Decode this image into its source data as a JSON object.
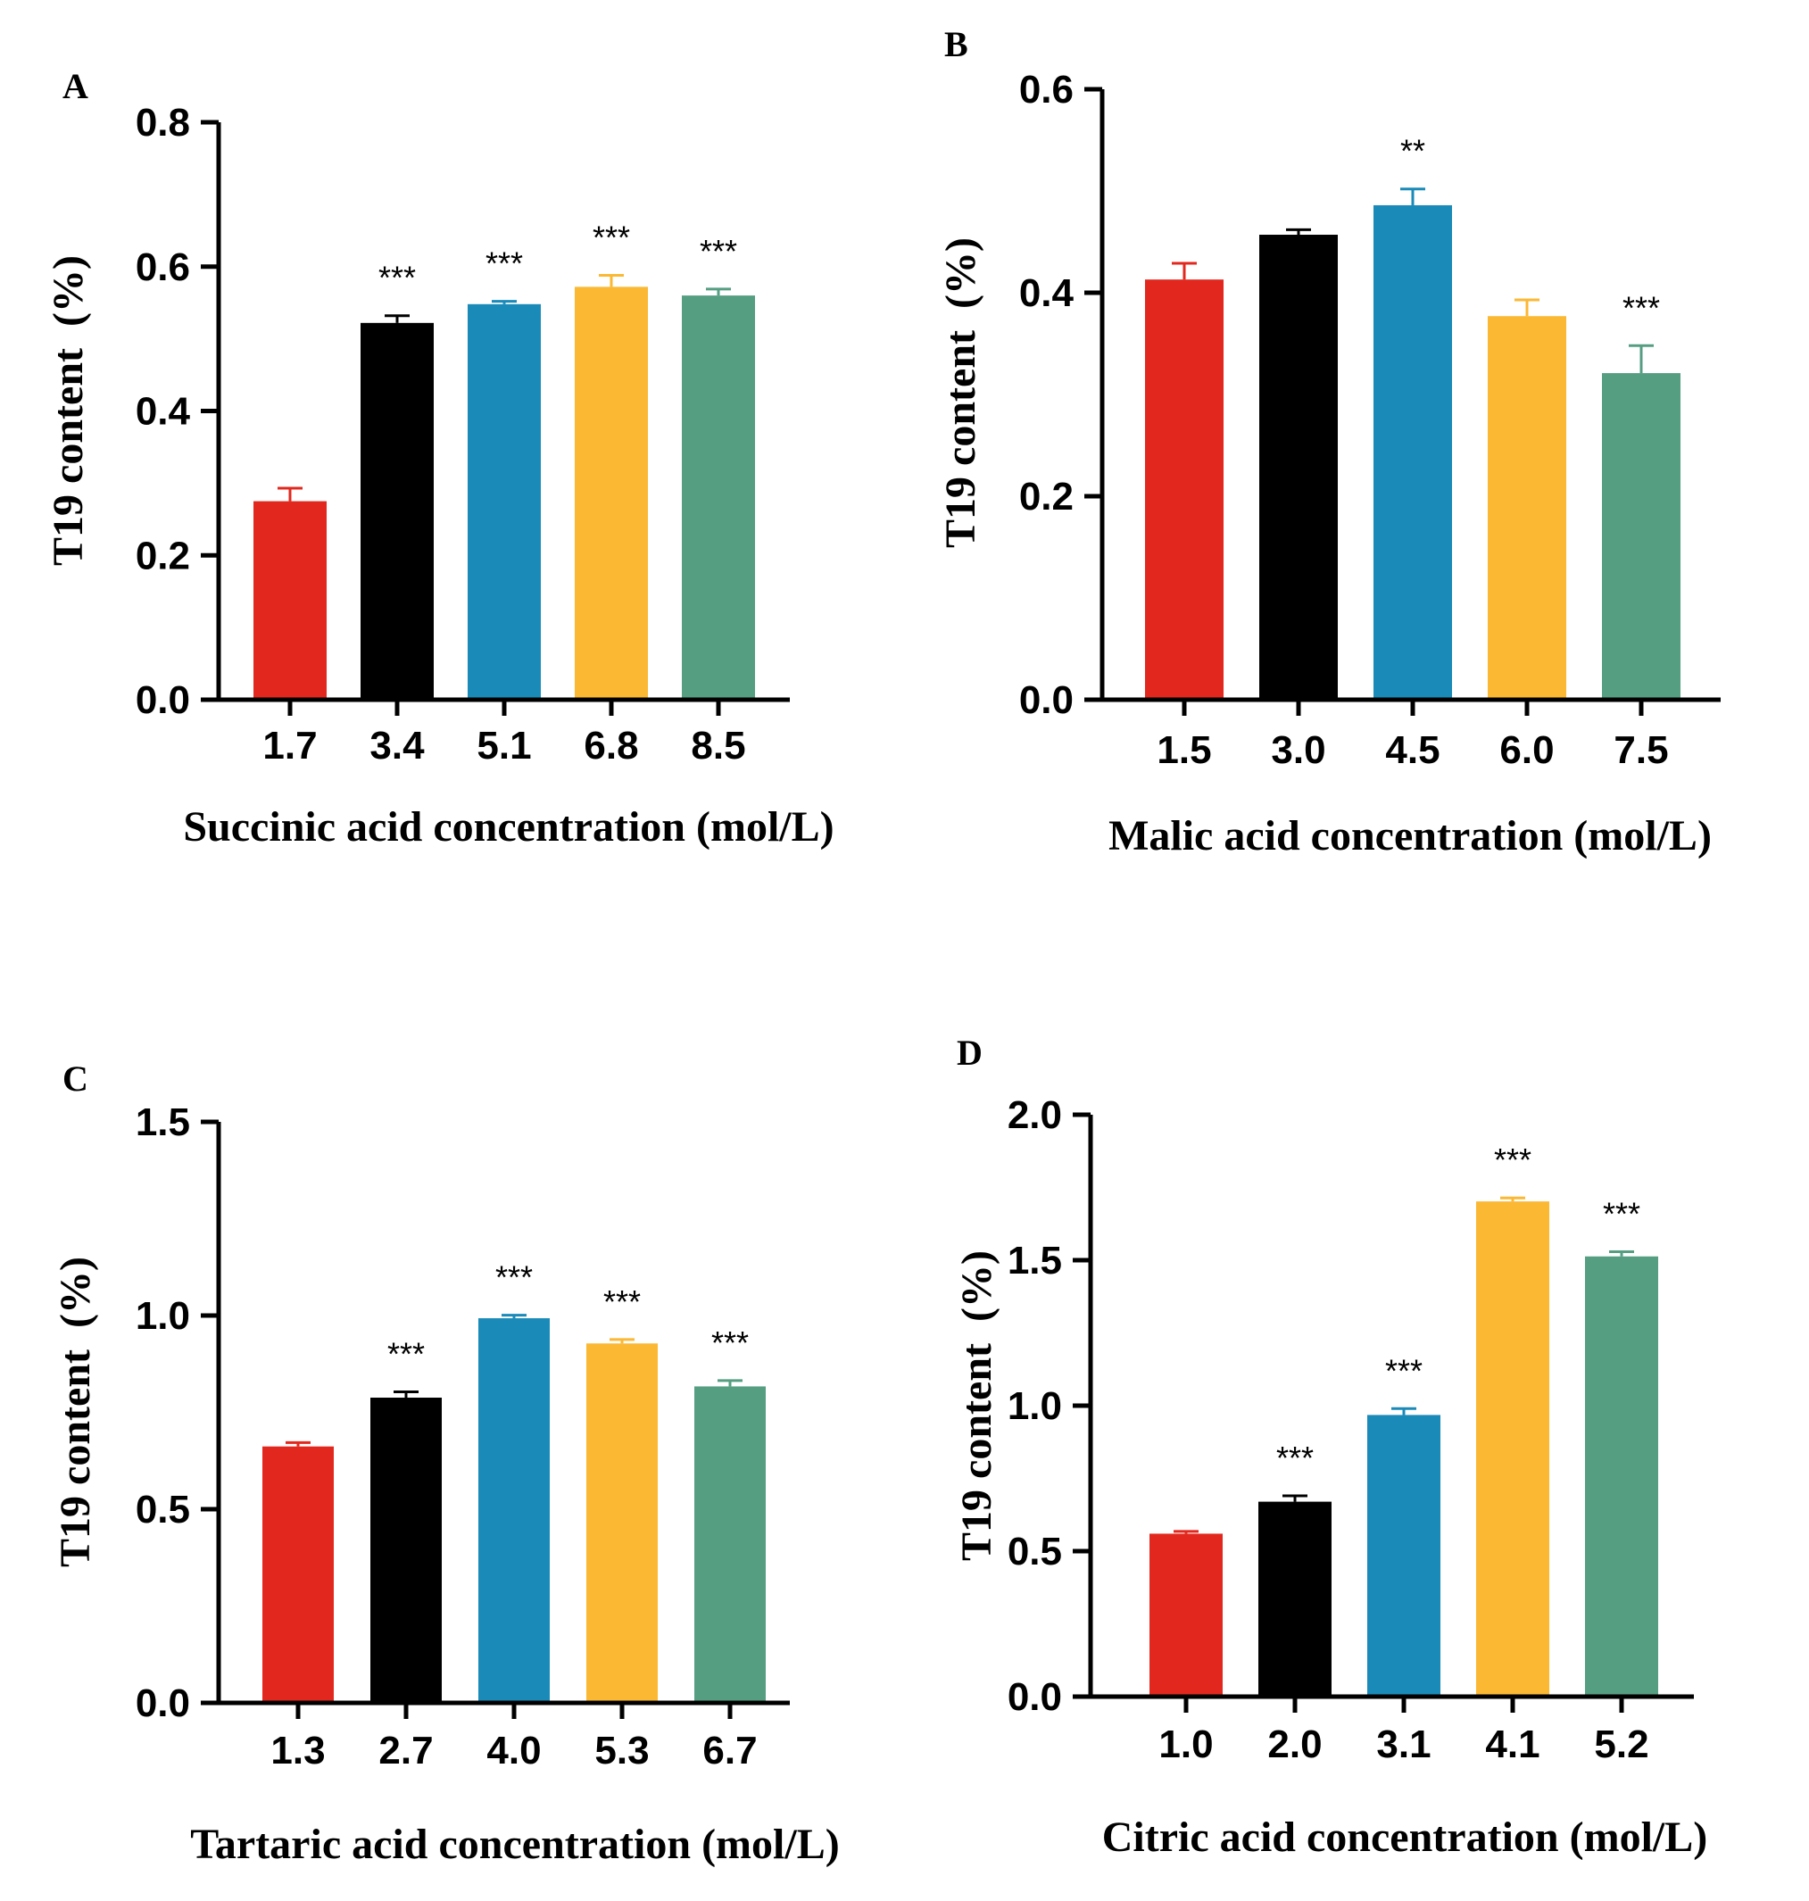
{
  "chart_data": [
    {
      "panel": "A",
      "type": "bar",
      "title": "",
      "xlabel": "Succinic acid concentration (mol/L)",
      "ylabel": "T19 content  (%)",
      "categories": [
        "1.7",
        "3.4",
        "5.1",
        "6.8",
        "8.5"
      ],
      "values": [
        0.275,
        0.522,
        0.548,
        0.572,
        0.56
      ],
      "errors": [
        0.018,
        0.01,
        0.004,
        0.016,
        0.009
      ],
      "significance": [
        "",
        "***",
        "***",
        "***",
        "***"
      ],
      "ylim": [
        0,
        0.8
      ],
      "yticks": [
        "0.0",
        "0.2",
        "0.4",
        "0.6",
        "0.8"
      ],
      "colors": [
        "#E2281E",
        "#000000",
        "#1A8AB8",
        "#FBB833",
        "#559E82"
      ]
    },
    {
      "panel": "B",
      "type": "bar",
      "title": "",
      "xlabel": "Malic acid concentration (mol/L)",
      "ylabel": "T19 content  (%)",
      "categories": [
        "1.5",
        "3.0",
        "4.5",
        "6.0",
        "7.5"
      ],
      "values": [
        0.413,
        0.457,
        0.486,
        0.377,
        0.321
      ],
      "errors": [
        0.016,
        0.005,
        0.016,
        0.016,
        0.027
      ],
      "significance": [
        "",
        "",
        "**",
        "",
        "***"
      ],
      "ylim": [
        0,
        0.6
      ],
      "yticks": [
        "0.0",
        "0.2",
        "0.4",
        "0.6"
      ],
      "colors": [
        "#E2281E",
        "#000000",
        "#1A8AB8",
        "#FBB833",
        "#559E82"
      ]
    },
    {
      "panel": "C",
      "type": "bar",
      "title": "",
      "xlabel": "Tartaric acid concentration (mol/L)",
      "ylabel": "T19 content  (%)",
      "categories": [
        "1.3",
        "2.7",
        "4.0",
        "5.3",
        "6.7"
      ],
      "values": [
        0.662,
        0.788,
        0.993,
        0.928,
        0.817
      ],
      "errors": [
        0.01,
        0.015,
        0.008,
        0.01,
        0.015
      ],
      "significance": [
        "",
        "***",
        "***",
        "***",
        "***"
      ],
      "ylim": [
        0,
        1.5
      ],
      "yticks": [
        "0.0",
        "0.5",
        "1.0",
        "1.5"
      ],
      "colors": [
        "#E2281E",
        "#000000",
        "#1A8AB8",
        "#FBB833",
        "#559E82"
      ]
    },
    {
      "panel": "D",
      "type": "bar",
      "title": "",
      "xlabel": "Citric acid concentration (mol/L)",
      "ylabel": "T19 content  (%)",
      "categories": [
        "1.0",
        "2.0",
        "3.1",
        "4.1",
        "5.2"
      ],
      "values": [
        0.56,
        0.67,
        0.968,
        1.702,
        1.513
      ],
      "errors": [
        0.008,
        0.02,
        0.022,
        0.012,
        0.016
      ],
      "significance": [
        "",
        "***",
        "***",
        "***",
        "***"
      ],
      "ylim": [
        0,
        2.0
      ],
      "yticks": [
        "0.0",
        "0.5",
        "1.0",
        "1.5",
        "2.0"
      ],
      "colors": [
        "#E2281E",
        "#000000",
        "#1A8AB8",
        "#FBB833",
        "#559E82"
      ]
    }
  ]
}
